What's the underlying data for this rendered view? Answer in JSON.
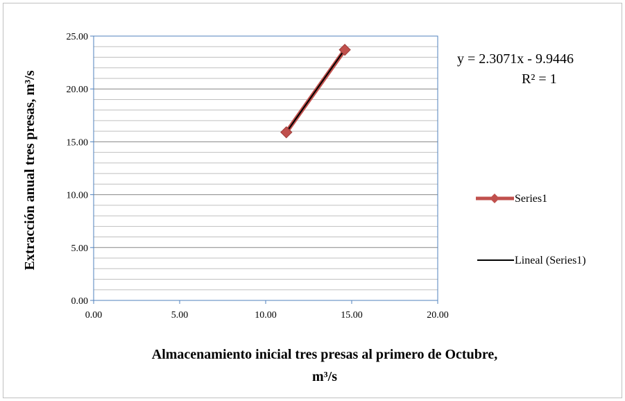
{
  "chart_data": {
    "type": "scatter",
    "title": "",
    "xlabel_line1": "Almacenamiento inicial tres presas al primero de Octubre,",
    "xlabel_line2": "m³/s",
    "ylabel": "Extracción anual tres presas, m³/s",
    "xlim": [
      0,
      20
    ],
    "ylim": [
      0,
      25
    ],
    "x_ticks": [
      "0.00",
      "5.00",
      "10.00",
      "15.00",
      "20.00"
    ],
    "y_ticks": [
      "0.00",
      "5.00",
      "10.00",
      "15.00",
      "20.00",
      "25.00"
    ],
    "grid": "horizontal",
    "legend_position": "right",
    "series": [
      {
        "name": "Series1",
        "color": "#c0504d",
        "marker": "diamond",
        "points": [
          {
            "x": 11.2,
            "y": 15.9
          },
          {
            "x": 14.6,
            "y": 23.7
          }
        ]
      }
    ],
    "trendline": {
      "name": "Lineal (Series1)",
      "color": "#000000",
      "slope": 2.3071,
      "intercept": -9.9446,
      "x_range": [
        11.2,
        14.6
      ],
      "equation": "y = 2.3071x - 9.9446",
      "r_squared": "R² = 1"
    }
  }
}
